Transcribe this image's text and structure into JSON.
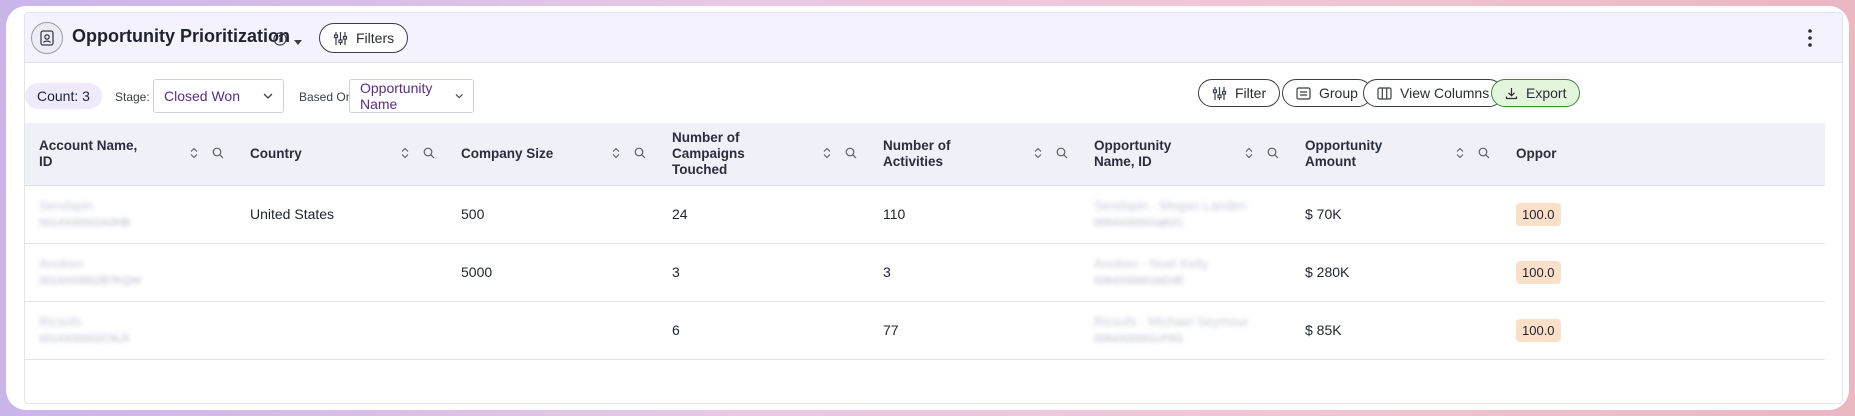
{
  "header": {
    "title": "Opportunity Prioritization",
    "filters_label": "Filters"
  },
  "toolbar": {
    "count_label": "Count: 3",
    "stage_label": "Stage:",
    "stage_value": "Closed Won",
    "based_on_label": "Based On:",
    "based_on_value": "Opportunity Name",
    "filter_label": "Filter",
    "group_label": "Group",
    "view_columns_label": "View Columns",
    "export_label": "Export"
  },
  "table": {
    "columns": [
      "Account Name, ID",
      "Country",
      "Company Size",
      "Number of Campaigns Touched",
      "Number of Activities",
      "Opportunity Name, ID",
      "Opportunity Amount",
      "Oppor"
    ],
    "rows": [
      {
        "account_name": "Sendspin",
        "account_id": "0014X00002A0HB",
        "country": "United States",
        "company_size": "500",
        "campaigns": "24",
        "activities": "110",
        "opp_name": "Sendspin - Megan Landen",
        "opp_id": "0064X00001aB2C",
        "amount": "$ 70K",
        "pct": "100.0"
      },
      {
        "account_name": "Anoken",
        "account_id": "0014X00002B7KQW",
        "country": "",
        "company_size": "5000",
        "campaigns": "3",
        "activities": "3",
        "opp_name": "Anoken - Noel Kelly",
        "opp_id": "0064X00001bD4E",
        "amount": "$ 280K",
        "pct": "100.0"
      },
      {
        "account_name": "Ricsofs",
        "account_id": "0014X00002C9LR",
        "country": "",
        "company_size": "",
        "campaigns": "6",
        "activities": "77",
        "opp_name": "Ricsofs - Michael Seymour",
        "opp_id": "0064X00001cF6G",
        "amount": "$ 85K",
        "pct": "100.0"
      }
    ]
  },
  "colors": {
    "accent": "#5a2d87",
    "header_bg": "#f3f2fd",
    "export_bg": "#e3f5dd",
    "pct_bg": "#fadfc9"
  }
}
